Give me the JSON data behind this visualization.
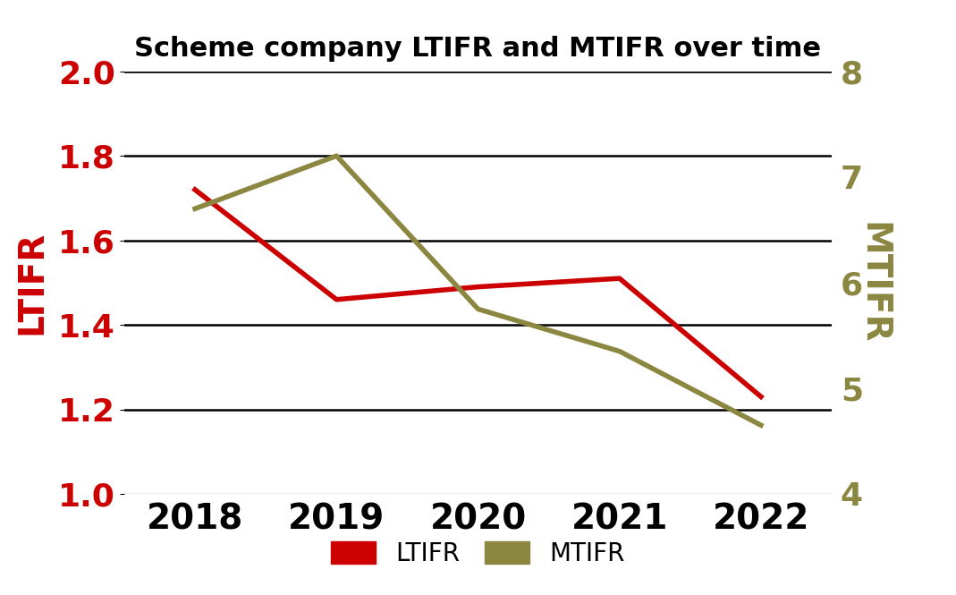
{
  "title": "Scheme company LTIFR and MTIFR over time",
  "years": [
    2018,
    2019,
    2020,
    2021,
    2022
  ],
  "ltifr": [
    1.72,
    1.46,
    1.49,
    1.51,
    1.23
  ],
  "mtifr": [
    6.7,
    7.2,
    5.75,
    5.35,
    4.65
  ],
  "ltifr_color": "#cc0000",
  "mtifr_color": "#8b8640",
  "left_ylabel": "LTIFR",
  "right_ylabel": "MTIFR",
  "left_ylim": [
    1.0,
    2.0
  ],
  "right_ylim": [
    4.0,
    8.0
  ],
  "left_yticks": [
    1.0,
    1.2,
    1.4,
    1.6,
    1.8,
    2.0
  ],
  "right_yticks": [
    4,
    5,
    6,
    7,
    8
  ],
  "title_fontsize": 22,
  "axis_label_fontsize": 28,
  "tick_fontsize": 26,
  "xtick_fontsize": 28,
  "legend_fontsize": 20,
  "line_width": 4.0,
  "background_color": "#ffffff",
  "grid_color": "#000000",
  "grid_bottom_color": "#aaaaaa",
  "left_ylabel_color": "#cc0000",
  "right_ylabel_color": "#8b8640"
}
